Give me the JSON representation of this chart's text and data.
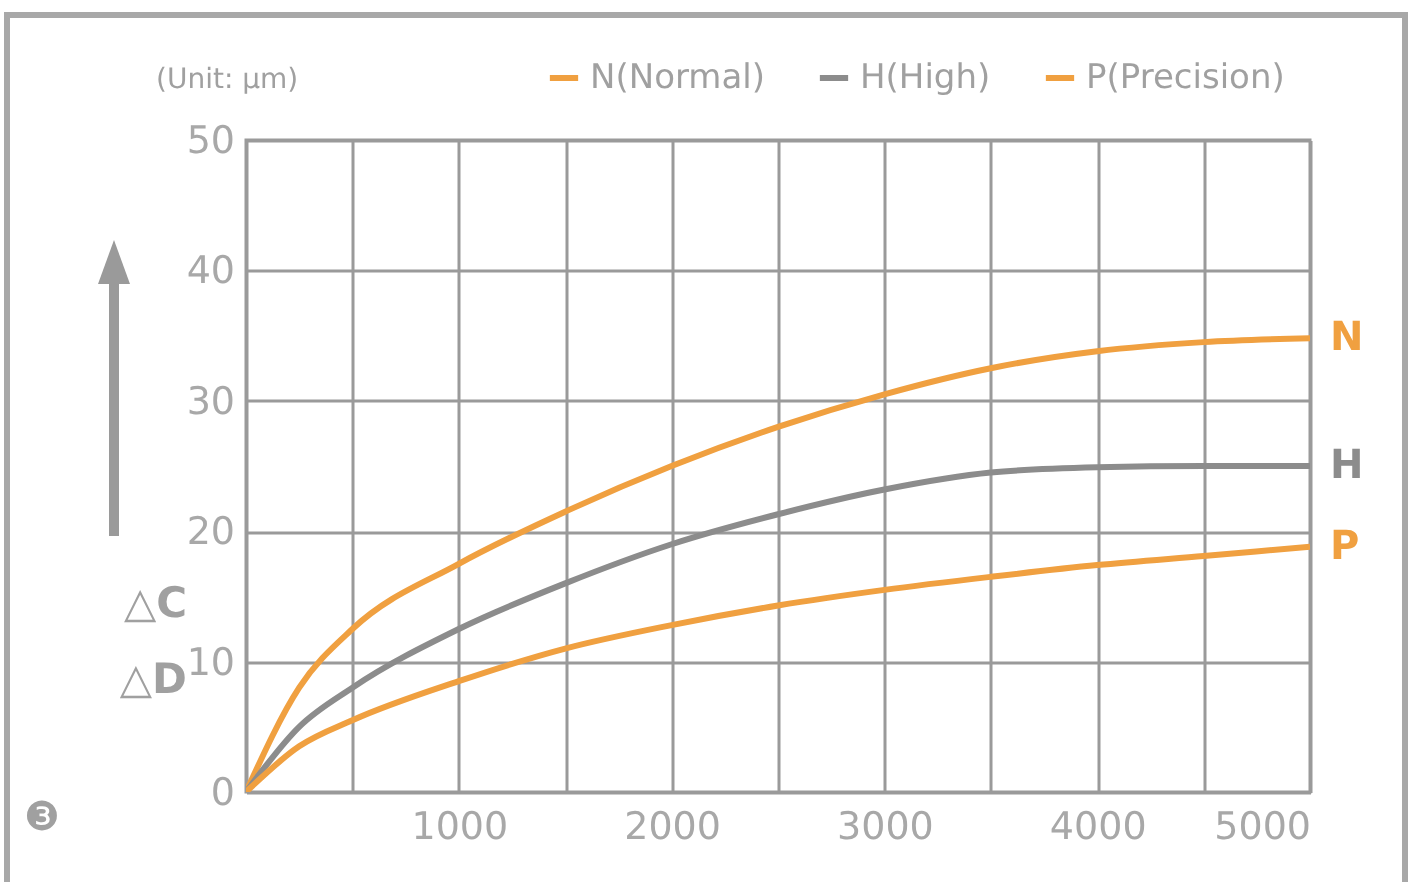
{
  "chart_data": {
    "type": "line",
    "x": [
      0,
      250,
      500,
      1000,
      1500,
      2000,
      2500,
      3000,
      3500,
      4000,
      4500,
      5000
    ],
    "series": [
      {
        "name": "N(Normal)",
        "color": "#f0a040",
        "values": [
          0,
          8,
          12.5,
          17.5,
          21.5,
          25,
          28,
          30.5,
          32.5,
          33.8,
          34.5,
          34.8
        ]
      },
      {
        "name": "H(High)",
        "color": "#8c8c8c",
        "values": [
          0,
          5,
          8,
          12.5,
          16,
          19,
          21.3,
          23.2,
          24.5,
          24.9,
          25,
          25
        ]
      },
      {
        "name": "P(Precision)",
        "color": "#f0a040",
        "values": [
          0,
          3.5,
          5.5,
          8.5,
          11,
          12.8,
          14.3,
          15.5,
          16.5,
          17.4,
          18.1,
          18.8
        ]
      }
    ],
    "ylabel": "△C △D",
    "xlim": [
      0,
      5000
    ],
    "ylim": [
      0,
      50
    ],
    "xticks": [
      {
        "value": 0,
        "label": null
      },
      {
        "value": 500,
        "label": null
      },
      1000,
      {
        "value": 1500,
        "label": null
      },
      2000,
      {
        "value": 2500,
        "label": null
      },
      3000,
      {
        "value": 3500,
        "label": null
      },
      4000,
      {
        "value": 4500,
        "label": null
      },
      5000
    ],
    "yticks": [
      0,
      10,
      20,
      30,
      40,
      50
    ],
    "grid": true,
    "legend": "top",
    "marker": "none",
    "line_style": "solid",
    "annotations": [
      "(Unit: μm)",
      "❸",
      "N",
      "H",
      "P"
    ]
  }
}
